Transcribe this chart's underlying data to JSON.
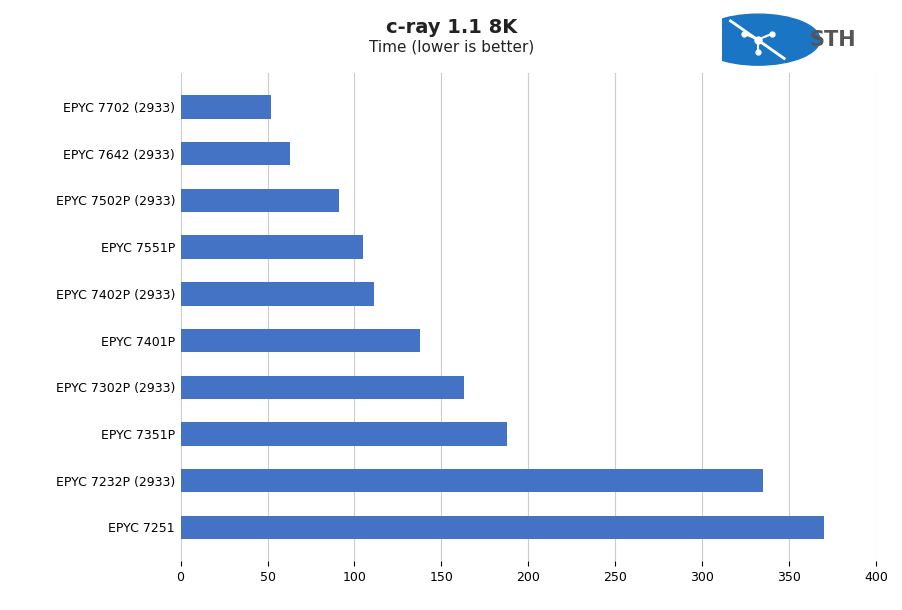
{
  "title": "c-ray 1.1 8K",
  "subtitle": "Time (lower is better)",
  "categories": [
    "EPYC 7251",
    "EPYC 7232P (2933)",
    "EPYC 7351P",
    "EPYC 7302P (2933)",
    "EPYC 7401P",
    "EPYC 7402P (2933)",
    "EPYC 7551P",
    "EPYC 7502P (2933)",
    "EPYC 7642 (2933)",
    "EPYC 7702 (2933)"
  ],
  "values": [
    370,
    335,
    188,
    163,
    138,
    111,
    105,
    91,
    63,
    52
  ],
  "bar_color": "#4472C4",
  "background_color": "#ffffff",
  "xlim": [
    0,
    400
  ],
  "xticks": [
    0,
    50,
    100,
    150,
    200,
    250,
    300,
    350,
    400
  ],
  "grid_color": "#cccccc",
  "title_fontsize": 14,
  "subtitle_fontsize": 11,
  "label_fontsize": 9,
  "tick_fontsize": 9,
  "logo_circle_color": "#1a75c4",
  "logo_text_color": "#555555"
}
